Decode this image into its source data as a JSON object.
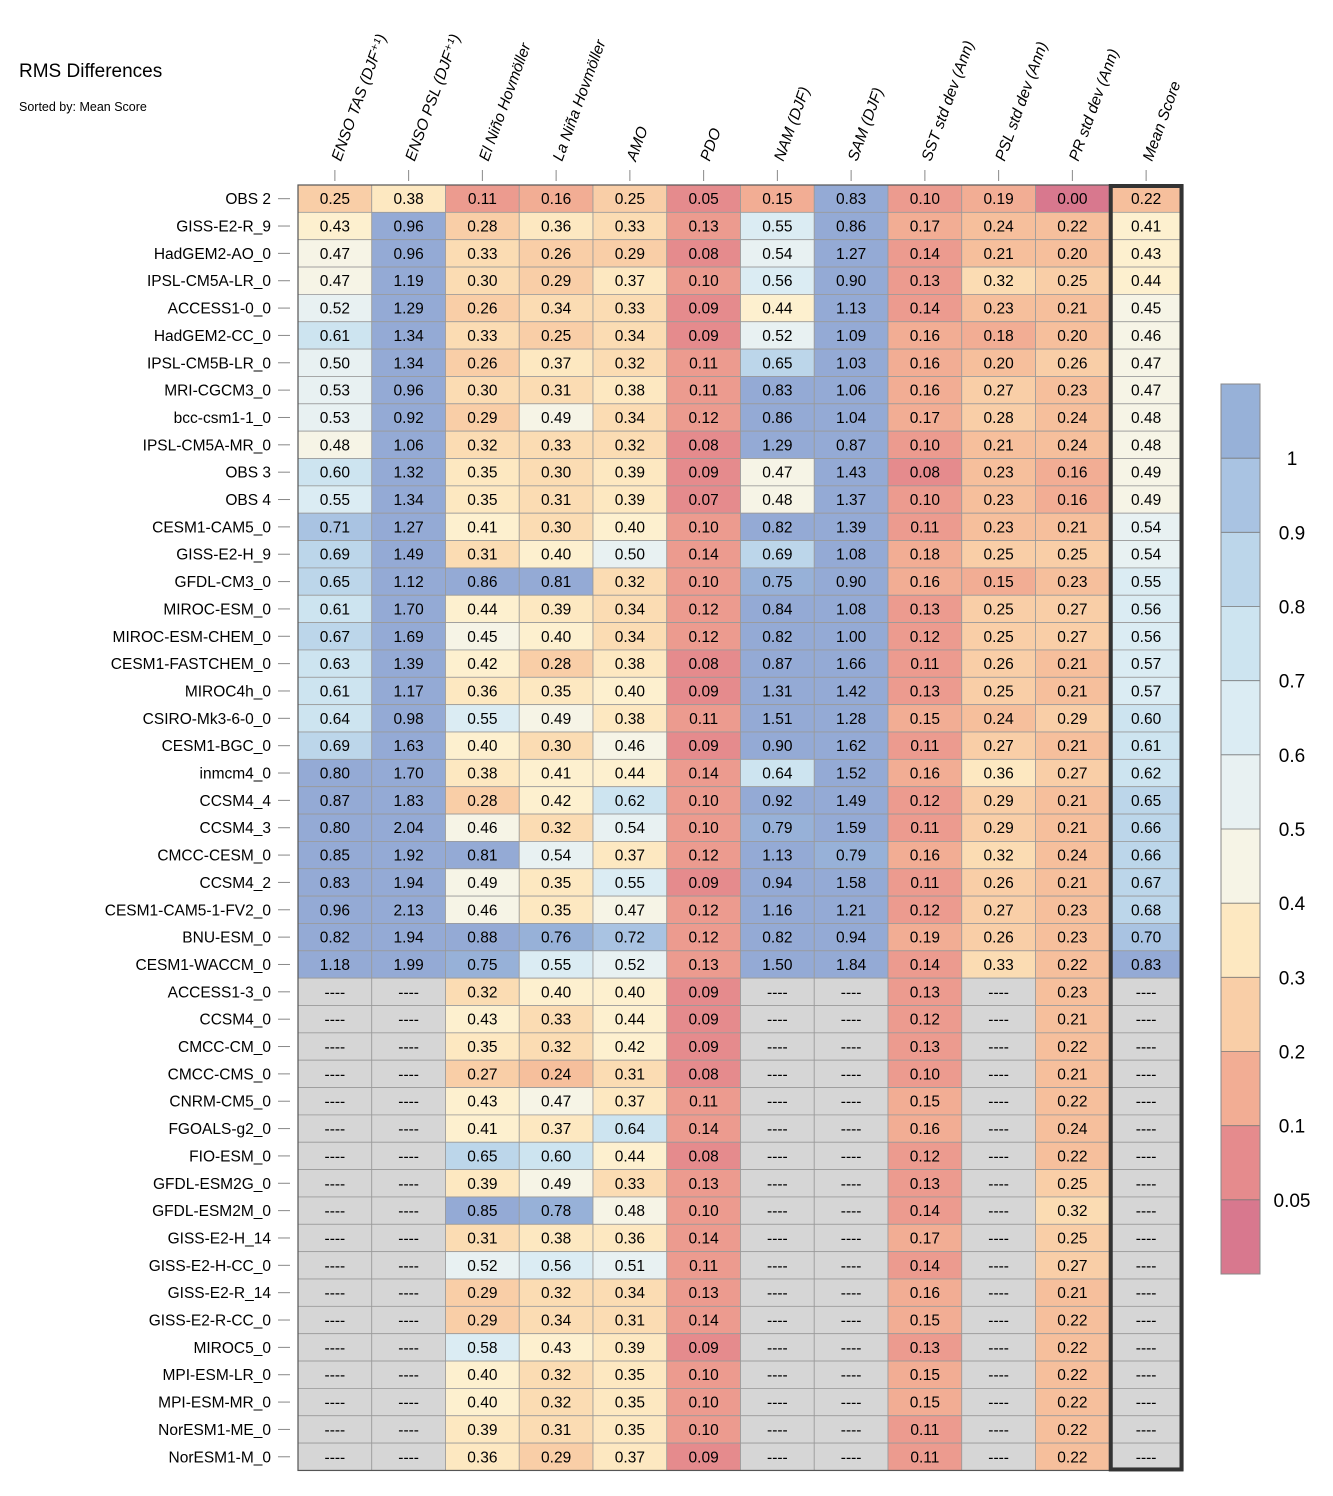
{
  "title": "RMS Differences",
  "subtitle": "Sorted by: Mean Score",
  "missing_label": "----",
  "chart_data": {
    "type": "heatmap",
    "columns": [
      "ENSO TAS (DJF⁺¹)",
      "ENSO PSL (DJF⁺¹)",
      "El Niño Hovmöller",
      "La Niña Hovmöller",
      "AMO",
      "PDO",
      "NAM (DJF)",
      "SAM (DJF)",
      "SST std dev (Ann)",
      "PSL std dev (Ann)",
      "PR std dev (Ann)",
      "Mean Score"
    ],
    "highlighted_column": "Mean Score",
    "rows": [
      {
        "name": "OBS 2",
        "values": [
          0.25,
          0.38,
          0.11,
          0.16,
          0.25,
          0.05,
          0.15,
          0.83,
          0.1,
          0.19,
          0.0,
          0.22
        ]
      },
      {
        "name": "GISS-E2-R_9",
        "values": [
          0.43,
          0.96,
          0.28,
          0.36,
          0.33,
          0.13,
          0.55,
          0.86,
          0.17,
          0.24,
          0.22,
          0.41
        ]
      },
      {
        "name": "HadGEM2-AO_0",
        "values": [
          0.47,
          0.96,
          0.33,
          0.26,
          0.29,
          0.08,
          0.54,
          1.27,
          0.14,
          0.21,
          0.2,
          0.43
        ]
      },
      {
        "name": "IPSL-CM5A-LR_0",
        "values": [
          0.47,
          1.19,
          0.3,
          0.29,
          0.37,
          0.1,
          0.56,
          0.9,
          0.13,
          0.32,
          0.25,
          0.44
        ]
      },
      {
        "name": "ACCESS1-0_0",
        "values": [
          0.52,
          1.29,
          0.26,
          0.34,
          0.33,
          0.09,
          0.44,
          1.13,
          0.14,
          0.23,
          0.21,
          0.45
        ]
      },
      {
        "name": "HadGEM2-CC_0",
        "values": [
          0.61,
          1.34,
          0.33,
          0.25,
          0.34,
          0.09,
          0.52,
          1.09,
          0.16,
          0.18,
          0.2,
          0.46
        ]
      },
      {
        "name": "IPSL-CM5B-LR_0",
        "values": [
          0.5,
          1.34,
          0.26,
          0.37,
          0.32,
          0.11,
          0.65,
          1.03,
          0.16,
          0.2,
          0.26,
          0.47
        ]
      },
      {
        "name": "MRI-CGCM3_0",
        "values": [
          0.53,
          0.96,
          0.3,
          0.31,
          0.38,
          0.11,
          0.83,
          1.06,
          0.16,
          0.27,
          0.23,
          0.47
        ]
      },
      {
        "name": "bcc-csm1-1_0",
        "values": [
          0.53,
          0.92,
          0.29,
          0.49,
          0.34,
          0.12,
          0.86,
          1.04,
          0.17,
          0.28,
          0.24,
          0.48
        ]
      },
      {
        "name": "IPSL-CM5A-MR_0",
        "values": [
          0.48,
          1.06,
          0.32,
          0.33,
          0.32,
          0.08,
          1.29,
          0.87,
          0.1,
          0.21,
          0.24,
          0.48
        ]
      },
      {
        "name": "OBS 3",
        "values": [
          0.6,
          1.32,
          0.35,
          0.3,
          0.39,
          0.09,
          0.47,
          1.43,
          0.08,
          0.23,
          0.16,
          0.49
        ]
      },
      {
        "name": "OBS 4",
        "values": [
          0.55,
          1.34,
          0.35,
          0.31,
          0.39,
          0.07,
          0.48,
          1.37,
          0.1,
          0.23,
          0.16,
          0.49
        ]
      },
      {
        "name": "CESM1-CAM5_0",
        "values": [
          0.71,
          1.27,
          0.41,
          0.3,
          0.4,
          0.1,
          0.82,
          1.39,
          0.11,
          0.23,
          0.21,
          0.54
        ]
      },
      {
        "name": "GISS-E2-H_9",
        "values": [
          0.69,
          1.49,
          0.31,
          0.4,
          0.5,
          0.14,
          0.69,
          1.08,
          0.18,
          0.25,
          0.25,
          0.54
        ]
      },
      {
        "name": "GFDL-CM3_0",
        "values": [
          0.65,
          1.12,
          0.86,
          0.81,
          0.32,
          0.1,
          0.75,
          0.9,
          0.16,
          0.15,
          0.23,
          0.55
        ]
      },
      {
        "name": "MIROC-ESM_0",
        "values": [
          0.61,
          1.7,
          0.44,
          0.39,
          0.34,
          0.12,
          0.84,
          1.08,
          0.13,
          0.25,
          0.27,
          0.56
        ]
      },
      {
        "name": "MIROC-ESM-CHEM_0",
        "values": [
          0.67,
          1.69,
          0.45,
          0.4,
          0.34,
          0.12,
          0.82,
          1.0,
          0.12,
          0.25,
          0.27,
          0.56
        ]
      },
      {
        "name": "CESM1-FASTCHEM_0",
        "values": [
          0.63,
          1.39,
          0.42,
          0.28,
          0.38,
          0.08,
          0.87,
          1.66,
          0.11,
          0.26,
          0.21,
          0.57
        ]
      },
      {
        "name": "MIROC4h_0",
        "values": [
          0.61,
          1.17,
          0.36,
          0.35,
          0.4,
          0.09,
          1.31,
          1.42,
          0.13,
          0.25,
          0.21,
          0.57
        ]
      },
      {
        "name": "CSIRO-Mk3-6-0_0",
        "values": [
          0.64,
          0.98,
          0.55,
          0.49,
          0.38,
          0.11,
          1.51,
          1.28,
          0.15,
          0.24,
          0.29,
          0.6
        ]
      },
      {
        "name": "CESM1-BGC_0",
        "values": [
          0.69,
          1.63,
          0.4,
          0.3,
          0.46,
          0.09,
          0.9,
          1.62,
          0.11,
          0.27,
          0.21,
          0.61
        ]
      },
      {
        "name": "inmcm4_0",
        "values": [
          0.8,
          1.7,
          0.38,
          0.41,
          0.44,
          0.14,
          0.64,
          1.52,
          0.16,
          0.36,
          0.27,
          0.62
        ]
      },
      {
        "name": "CCSM4_4",
        "values": [
          0.87,
          1.83,
          0.28,
          0.42,
          0.62,
          0.1,
          0.92,
          1.49,
          0.12,
          0.29,
          0.21,
          0.65
        ]
      },
      {
        "name": "CCSM4_3",
        "values": [
          0.8,
          2.04,
          0.46,
          0.32,
          0.54,
          0.1,
          0.79,
          1.59,
          0.11,
          0.29,
          0.21,
          0.66
        ]
      },
      {
        "name": "CMCC-CESM_0",
        "values": [
          0.85,
          1.92,
          0.81,
          0.54,
          0.37,
          0.12,
          1.13,
          0.79,
          0.16,
          0.32,
          0.24,
          0.66
        ]
      },
      {
        "name": "CCSM4_2",
        "values": [
          0.83,
          1.94,
          0.49,
          0.35,
          0.55,
          0.09,
          0.94,
          1.58,
          0.11,
          0.26,
          0.21,
          0.67
        ]
      },
      {
        "name": "CESM1-CAM5-1-FV2_0",
        "values": [
          0.96,
          2.13,
          0.46,
          0.35,
          0.47,
          0.12,
          1.16,
          1.21,
          0.12,
          0.27,
          0.23,
          0.68
        ]
      },
      {
        "name": "BNU-ESM_0",
        "values": [
          0.82,
          1.94,
          0.88,
          0.76,
          0.72,
          0.12,
          0.82,
          0.94,
          0.19,
          0.26,
          0.23,
          0.7
        ]
      },
      {
        "name": "CESM1-WACCM_0",
        "values": [
          1.18,
          1.99,
          0.75,
          0.55,
          0.52,
          0.13,
          1.5,
          1.84,
          0.14,
          0.33,
          0.22,
          0.83
        ]
      },
      {
        "name": "ACCESS1-3_0",
        "values": [
          null,
          null,
          0.32,
          0.4,
          0.4,
          0.09,
          null,
          null,
          0.13,
          null,
          0.23,
          null
        ]
      },
      {
        "name": "CCSM4_0",
        "values": [
          null,
          null,
          0.43,
          0.33,
          0.44,
          0.09,
          null,
          null,
          0.12,
          null,
          0.21,
          null
        ]
      },
      {
        "name": "CMCC-CM_0",
        "values": [
          null,
          null,
          0.35,
          0.32,
          0.42,
          0.09,
          null,
          null,
          0.13,
          null,
          0.22,
          null
        ]
      },
      {
        "name": "CMCC-CMS_0",
        "values": [
          null,
          null,
          0.27,
          0.24,
          0.31,
          0.08,
          null,
          null,
          0.1,
          null,
          0.21,
          null
        ]
      },
      {
        "name": "CNRM-CM5_0",
        "values": [
          null,
          null,
          0.43,
          0.47,
          0.37,
          0.11,
          null,
          null,
          0.15,
          null,
          0.22,
          null
        ]
      },
      {
        "name": "FGOALS-g2_0",
        "values": [
          null,
          null,
          0.41,
          0.37,
          0.64,
          0.14,
          null,
          null,
          0.16,
          null,
          0.24,
          null
        ]
      },
      {
        "name": "FIO-ESM_0",
        "values": [
          null,
          null,
          0.65,
          0.6,
          0.44,
          0.08,
          null,
          null,
          0.12,
          null,
          0.22,
          null
        ]
      },
      {
        "name": "GFDL-ESM2G_0",
        "values": [
          null,
          null,
          0.39,
          0.49,
          0.33,
          0.13,
          null,
          null,
          0.13,
          null,
          0.25,
          null
        ]
      },
      {
        "name": "GFDL-ESM2M_0",
        "values": [
          null,
          null,
          0.85,
          0.78,
          0.48,
          0.1,
          null,
          null,
          0.14,
          null,
          0.32,
          null
        ]
      },
      {
        "name": "GISS-E2-H_14",
        "values": [
          null,
          null,
          0.31,
          0.38,
          0.36,
          0.14,
          null,
          null,
          0.17,
          null,
          0.25,
          null
        ]
      },
      {
        "name": "GISS-E2-H-CC_0",
        "values": [
          null,
          null,
          0.52,
          0.56,
          0.51,
          0.11,
          null,
          null,
          0.14,
          null,
          0.27,
          null
        ]
      },
      {
        "name": "GISS-E2-R_14",
        "values": [
          null,
          null,
          0.29,
          0.32,
          0.34,
          0.13,
          null,
          null,
          0.16,
          null,
          0.21,
          null
        ]
      },
      {
        "name": "GISS-E2-R-CC_0",
        "values": [
          null,
          null,
          0.29,
          0.34,
          0.31,
          0.14,
          null,
          null,
          0.15,
          null,
          0.22,
          null
        ]
      },
      {
        "name": "MIROC5_0",
        "values": [
          null,
          null,
          0.58,
          0.43,
          0.39,
          0.09,
          null,
          null,
          0.13,
          null,
          0.22,
          null
        ]
      },
      {
        "name": "MPI-ESM-LR_0",
        "values": [
          null,
          null,
          0.4,
          0.32,
          0.35,
          0.1,
          null,
          null,
          0.15,
          null,
          0.22,
          null
        ]
      },
      {
        "name": "MPI-ESM-MR_0",
        "values": [
          null,
          null,
          0.4,
          0.32,
          0.35,
          0.1,
          null,
          null,
          0.15,
          null,
          0.22,
          null
        ]
      },
      {
        "name": "NorESM1-ME_0",
        "values": [
          null,
          null,
          0.39,
          0.31,
          0.35,
          0.1,
          null,
          null,
          0.11,
          null,
          0.22,
          null
        ]
      },
      {
        "name": "NorESM1-M_0",
        "values": [
          null,
          null,
          0.36,
          0.29,
          0.37,
          0.09,
          null,
          null,
          0.11,
          null,
          0.22,
          null
        ]
      }
    ],
    "colorbar": {
      "ticks": [
        "1",
        "0.9",
        "0.8",
        "0.7",
        "0.6",
        "0.5",
        "0.4",
        "0.3",
        "0.2",
        "0.1",
        "0.05"
      ],
      "levels": [
        0.05,
        0.1,
        0.15,
        0.2,
        0.25,
        0.3,
        0.35,
        0.4,
        0.45,
        0.5,
        0.55,
        0.6,
        0.65,
        0.7,
        0.75,
        0.8,
        0.85,
        0.9,
        0.95,
        1.0
      ],
      "colors": [
        "#d8788e",
        "#e58b8d",
        "#ec9b8f",
        "#f2ad94",
        "#f6bf9c",
        "#f9cea7",
        "#fbdcb3",
        "#fde8c1",
        "#fdf0cf",
        "#f6f4e6",
        "#e8f1f2",
        "#dbecf3",
        "#cde4f0",
        "#bcd6ea",
        "#a9c3e2",
        "#97b1d8",
        "#94aad5",
        "#94aad5",
        "#94aad5",
        "#94aad5",
        "#94aad5"
      ],
      "missing_color": "#d6d6d6"
    }
  }
}
